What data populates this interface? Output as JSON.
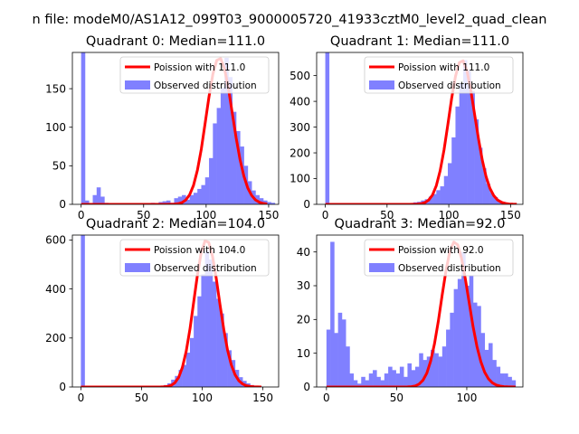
{
  "figure_title": "n file: modeM0/AS1A12_099T03_9000005720_41933cztM0_level2_quad_clean",
  "colors": {
    "hist": "#8080ff",
    "poisson": "#ff0000"
  },
  "chart_data": [
    {
      "type": "bar",
      "title": "Quadrant 0: Median=111.0",
      "median": 111.0,
      "legend": [
        "Poission with 111.0",
        "Observed distribution"
      ],
      "legend_position": "top-right",
      "xlim": [
        -7,
        158
      ],
      "ylim": [
        0,
        197
      ],
      "xticks": [
        0,
        50,
        100,
        150
      ],
      "xtick_labels": [
        "0",
        "50",
        "100",
        "150"
      ],
      "yticks": [
        0,
        50,
        100,
        150
      ],
      "ytick_labels": [
        "0",
        "50",
        "100",
        "150"
      ],
      "bin_width": 3.1,
      "bins": [
        [
          0,
          197
        ],
        [
          3.1,
          5
        ],
        [
          6.2,
          0
        ],
        [
          9.3,
          12
        ],
        [
          12.4,
          22
        ],
        [
          15.5,
          10
        ],
        [
          18.6,
          2
        ],
        [
          55.8,
          2
        ],
        [
          62,
          3
        ],
        [
          65.1,
          4
        ],
        [
          68.2,
          5
        ],
        [
          71.3,
          2
        ],
        [
          74.4,
          8
        ],
        [
          77.5,
          10
        ],
        [
          80.6,
          12
        ],
        [
          83.7,
          6
        ],
        [
          86.8,
          12
        ],
        [
          89.9,
          15
        ],
        [
          93,
          20
        ],
        [
          96.1,
          25
        ],
        [
          99.2,
          35
        ],
        [
          102.3,
          60
        ],
        [
          105.4,
          105
        ],
        [
          108.5,
          125
        ],
        [
          111.6,
          152
        ],
        [
          114.7,
          190
        ],
        [
          117.8,
          165
        ],
        [
          120.9,
          120
        ],
        [
          124,
          95
        ],
        [
          127.1,
          75
        ],
        [
          130.2,
          50
        ],
        [
          133.3,
          30
        ],
        [
          136.4,
          18
        ],
        [
          139.5,
          12
        ],
        [
          142.6,
          8
        ],
        [
          145.7,
          5
        ],
        [
          148.8,
          3
        ],
        [
          151.9,
          2
        ]
      ],
      "curve": {
        "lambda": 111.0,
        "x_range": [
          0,
          150
        ],
        "step": 3.1,
        "peak": 190
      }
    },
    {
      "type": "bar",
      "title": "Quadrant 1: Median=111.0",
      "median": 111.0,
      "legend": [
        "Poission with 111.0",
        "Observed distribution"
      ],
      "legend_position": "top-right",
      "xlim": [
        -7,
        160
      ],
      "ylim": [
        0,
        590
      ],
      "xticks": [
        0,
        50,
        100,
        150
      ],
      "xtick_labels": [
        "0",
        "50",
        "100",
        "150"
      ],
      "yticks": [
        0,
        100,
        200,
        300,
        400,
        500
      ],
      "ytick_labels": [
        "0",
        "100",
        "200",
        "300",
        "400",
        "500"
      ],
      "bin_width": 3.1,
      "bins": [
        [
          0,
          590
        ],
        [
          3.1,
          3
        ],
        [
          62,
          3
        ],
        [
          65.1,
          5
        ],
        [
          68.2,
          5
        ],
        [
          71.3,
          8
        ],
        [
          74.4,
          10
        ],
        [
          77.5,
          15
        ],
        [
          80.6,
          20
        ],
        [
          83.7,
          30
        ],
        [
          86.8,
          40
        ],
        [
          89.9,
          55
        ],
        [
          93,
          70
        ],
        [
          96.1,
          110
        ],
        [
          99.2,
          160
        ],
        [
          102.3,
          260
        ],
        [
          105.4,
          380
        ],
        [
          108.5,
          470
        ],
        [
          111.6,
          560
        ],
        [
          114.7,
          520
        ],
        [
          117.8,
          440
        ],
        [
          120.9,
          330
        ],
        [
          124,
          220
        ],
        [
          127.1,
          140
        ],
        [
          130.2,
          80
        ],
        [
          133.3,
          45
        ],
        [
          136.4,
          28
        ],
        [
          139.5,
          15
        ],
        [
          142.6,
          10
        ],
        [
          145.7,
          6
        ],
        [
          148.8,
          3
        ],
        [
          151.9,
          2
        ]
      ],
      "curve": {
        "lambda": 111.0,
        "x_range": [
          0,
          155
        ],
        "step": 3.1,
        "peak": 560
      }
    },
    {
      "type": "bar",
      "title": "Quadrant 2: Median=104.0",
      "median": 104.0,
      "legend": [
        "Poission with 104.0",
        "Observed distribution"
      ],
      "legend_position": "top-right",
      "xlim": [
        -7,
        163
      ],
      "ylim": [
        0,
        620
      ],
      "xticks": [
        0,
        50,
        100,
        150
      ],
      "xtick_labels": [
        "0",
        "50",
        "100",
        "150"
      ],
      "yticks": [
        0,
        200,
        400,
        600
      ],
      "ytick_labels": [
        "0",
        "200",
        "400",
        "600"
      ],
      "bin_width": 3.1,
      "bins": [
        [
          0,
          620
        ],
        [
          62,
          3
        ],
        [
          65.1,
          5
        ],
        [
          68.2,
          8
        ],
        [
          71.3,
          15
        ],
        [
          74.4,
          30
        ],
        [
          77.5,
          45
        ],
        [
          80.6,
          70
        ],
        [
          83.7,
          90
        ],
        [
          86.8,
          140
        ],
        [
          89.9,
          200
        ],
        [
          93,
          290
        ],
        [
          96.1,
          370
        ],
        [
          99.2,
          460
        ],
        [
          102.3,
          555
        ],
        [
          105.4,
          520
        ],
        [
          108.5,
          430
        ],
        [
          111.6,
          360
        ],
        [
          114.7,
          300
        ],
        [
          117.8,
          220
        ],
        [
          120.9,
          150
        ],
        [
          124,
          110
        ],
        [
          127.1,
          70
        ],
        [
          130.2,
          40
        ],
        [
          133.3,
          25
        ],
        [
          136.4,
          15
        ],
        [
          139.5,
          8
        ],
        [
          142.6,
          4
        ],
        [
          145.7,
          3
        ]
      ],
      "curve": {
        "lambda": 104.0,
        "x_range": [
          0,
          150
        ],
        "step": 3.1,
        "peak": 600
      }
    },
    {
      "type": "bar",
      "title": "Quadrant 3: Median=92.0",
      "median": 92.0,
      "legend": [
        "Poission with 92.0",
        "Observed distribution"
      ],
      "legend_position": "top-right",
      "xlim": [
        -7,
        140
      ],
      "ylim": [
        0,
        45
      ],
      "xticks": [
        0,
        50,
        100
      ],
      "xtick_labels": [
        "0",
        "50",
        "100"
      ],
      "yticks": [
        0,
        10,
        20,
        30,
        40
      ],
      "ytick_labels": [
        "0",
        "10",
        "20",
        "30",
        "40"
      ],
      "bin_width": 2.75,
      "bins": [
        [
          0,
          17
        ],
        [
          2.75,
          43
        ],
        [
          5.5,
          16
        ],
        [
          8.25,
          22
        ],
        [
          11,
          20
        ],
        [
          13.75,
          12
        ],
        [
          16.5,
          4
        ],
        [
          19.25,
          2
        ],
        [
          22,
          1
        ],
        [
          24.75,
          3
        ],
        [
          27.5,
          2
        ],
        [
          30.25,
          4
        ],
        [
          33,
          5
        ],
        [
          35.75,
          3
        ],
        [
          38.5,
          2
        ],
        [
          41.25,
          4
        ],
        [
          44,
          6
        ],
        [
          46.75,
          5
        ],
        [
          49.5,
          4
        ],
        [
          52.25,
          6
        ],
        [
          55,
          3
        ],
        [
          57.75,
          7
        ],
        [
          60.5,
          5
        ],
        [
          63.25,
          6
        ],
        [
          66,
          10
        ],
        [
          68.75,
          8
        ],
        [
          71.5,
          9
        ],
        [
          74.25,
          11
        ],
        [
          77,
          10
        ],
        [
          79.75,
          9
        ],
        [
          82.5,
          12
        ],
        [
          85.25,
          17
        ],
        [
          88,
          22
        ],
        [
          90.75,
          29
        ],
        [
          93.5,
          32
        ],
        [
          96.25,
          40
        ],
        [
          99,
          30
        ],
        [
          101.75,
          33
        ],
        [
          104.5,
          25
        ],
        [
          107.25,
          24
        ],
        [
          110,
          16
        ],
        [
          112.75,
          11
        ],
        [
          115.5,
          13
        ],
        [
          118.25,
          8
        ],
        [
          121,
          6
        ],
        [
          123.75,
          4
        ],
        [
          126.5,
          4
        ],
        [
          129.25,
          3
        ],
        [
          132,
          2
        ]
      ],
      "curve": {
        "lambda": 92.0,
        "x_range": [
          0,
          135
        ],
        "step": 2.75,
        "peak": 43
      }
    }
  ]
}
